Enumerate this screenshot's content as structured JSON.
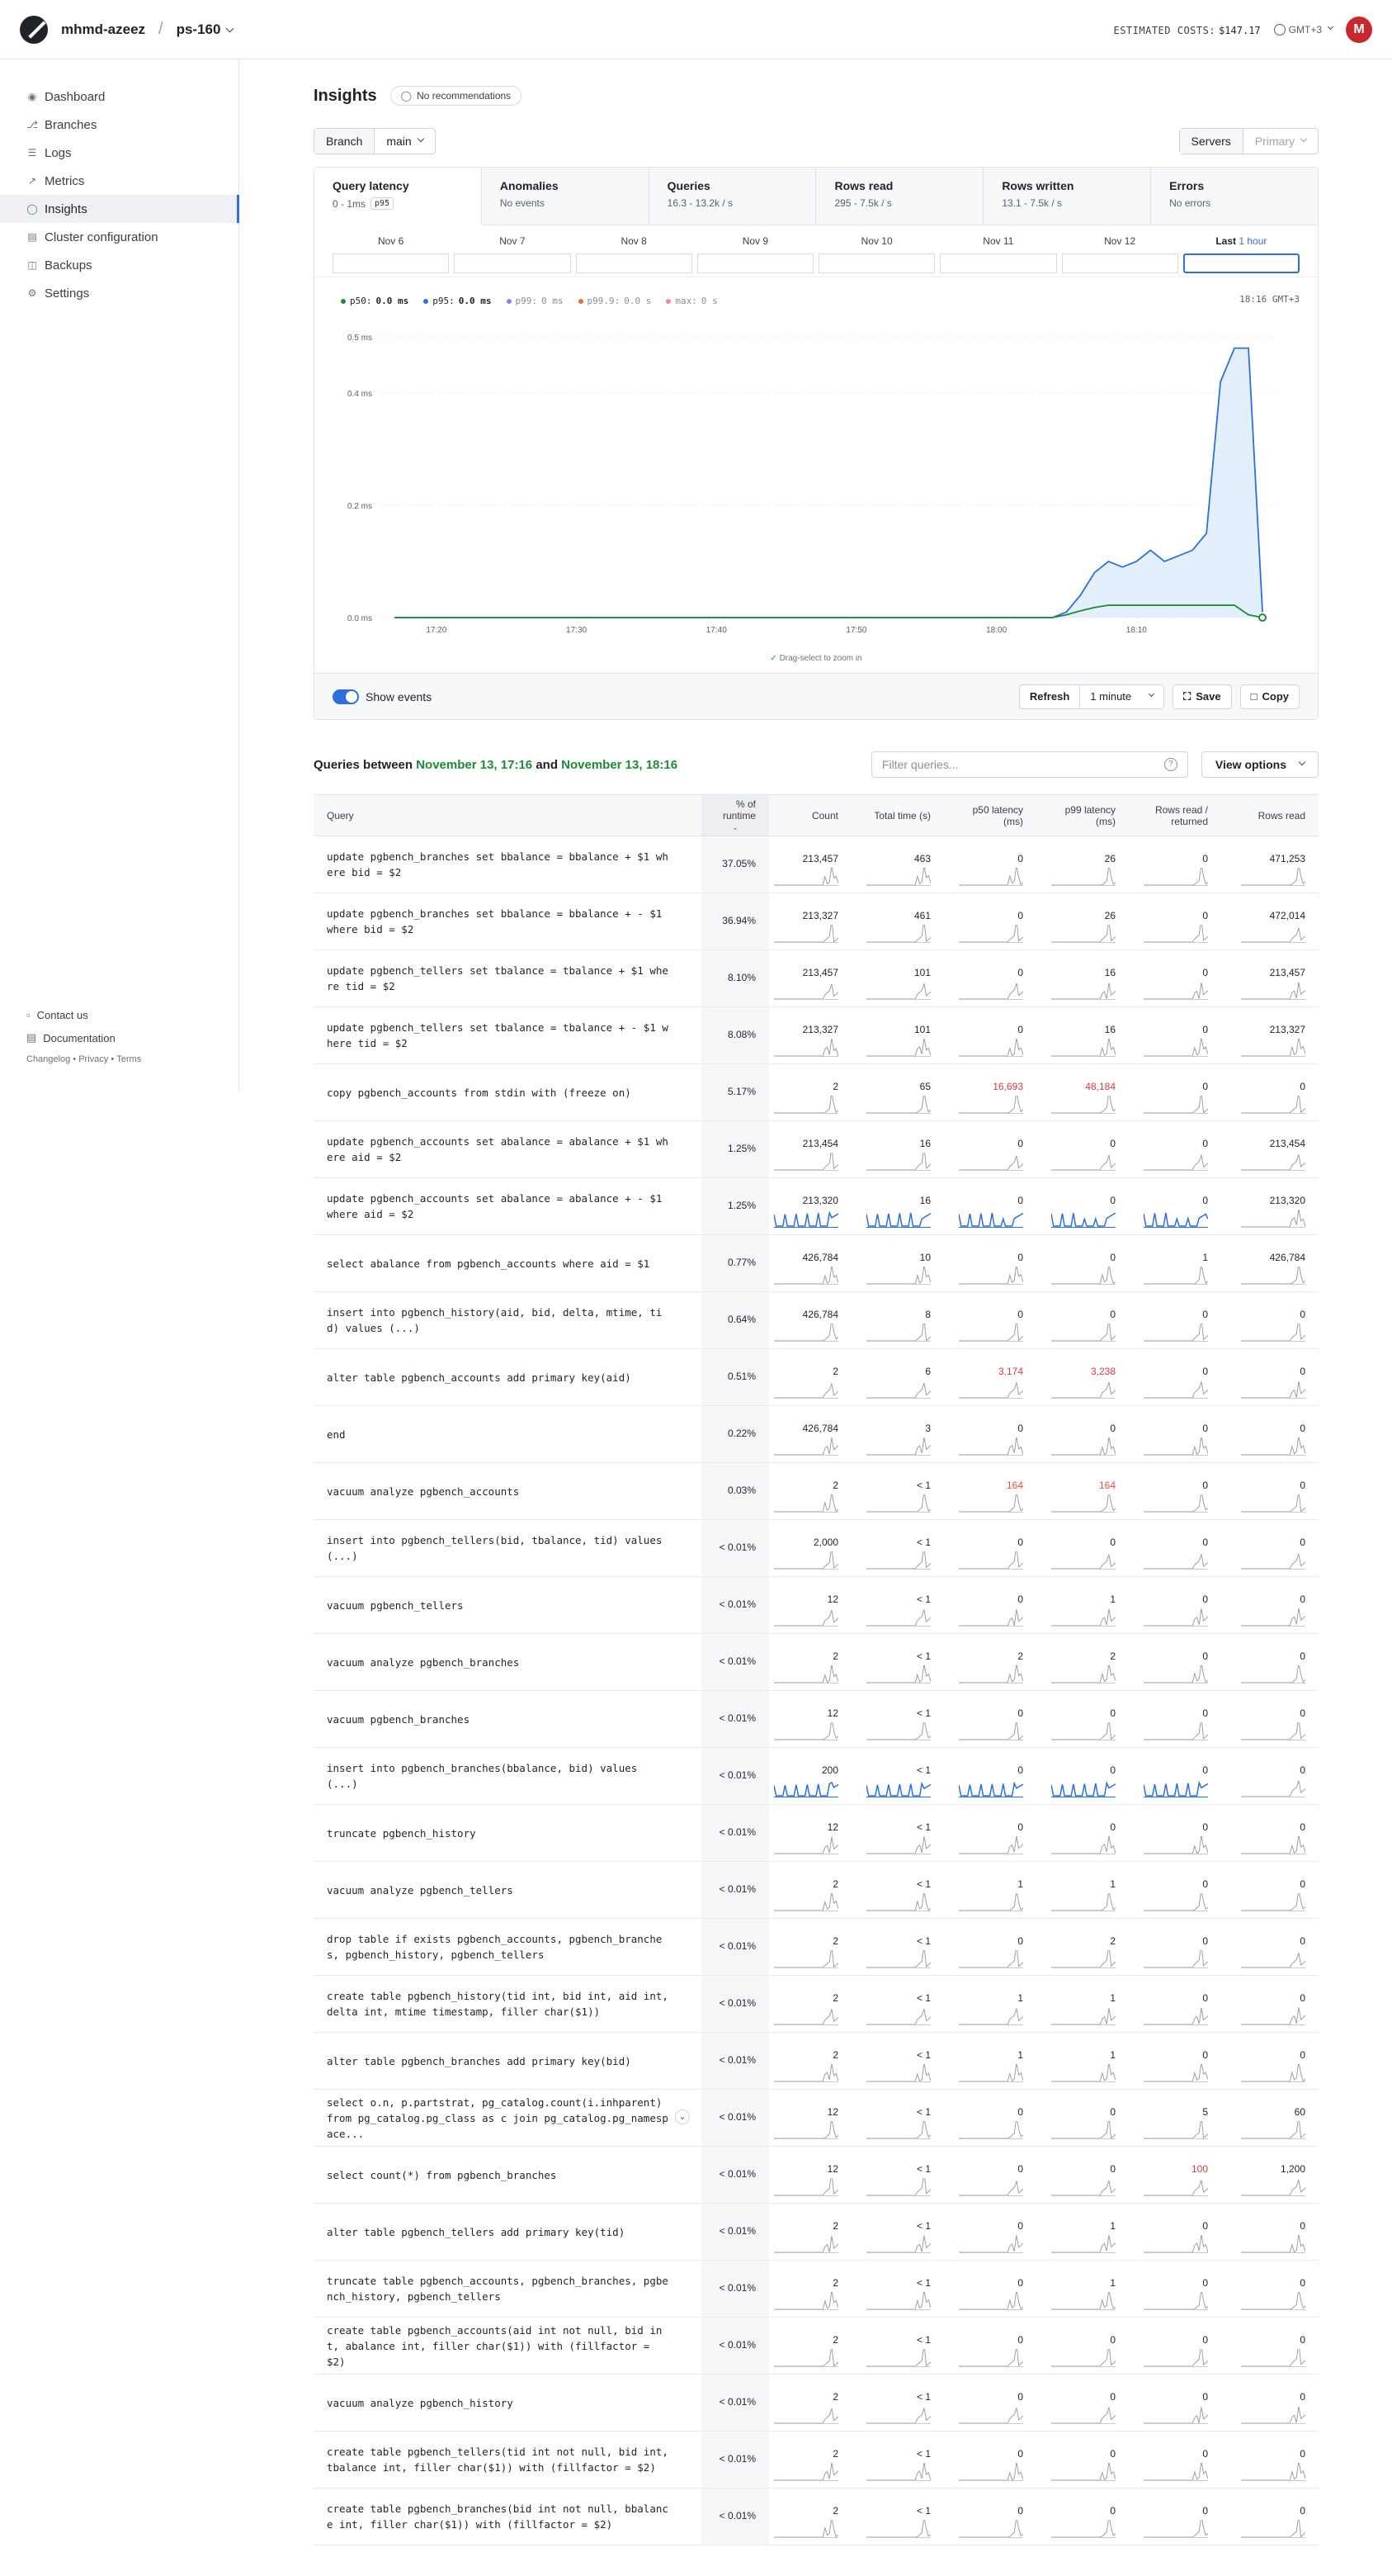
{
  "header": {
    "org": "mhmd-azeez",
    "sep": "/",
    "database": "ps-160",
    "costs_label": "ESTIMATED COSTS:",
    "costs_value": "$147.17",
    "timezone": "GMT+3",
    "avatar_letter": "M"
  },
  "sidebar": {
    "items": [
      {
        "label": "Dashboard",
        "icon": "grid-icon"
      },
      {
        "label": "Branches",
        "icon": "branch-icon"
      },
      {
        "label": "Logs",
        "icon": "logs-icon"
      },
      {
        "label": "Metrics",
        "icon": "metrics-icon"
      },
      {
        "label": "Insights",
        "icon": "bulb-icon",
        "active": true
      },
      {
        "label": "Cluster configuration",
        "icon": "cluster-icon"
      },
      {
        "label": "Backups",
        "icon": "backup-icon"
      },
      {
        "label": "Settings",
        "icon": "gear-icon"
      }
    ],
    "footer": {
      "contact": "Contact us",
      "docs": "Documentation",
      "changelog": "Changelog",
      "privacy": "Privacy",
      "terms": "Terms",
      "dot": "•"
    }
  },
  "insights": {
    "title": "Insights",
    "recommendations": "No recommendations",
    "branch_label": "Branch",
    "branch_value": "main",
    "servers_label": "Servers",
    "servers_value": "Primary",
    "tabs": [
      {
        "title": "Query latency",
        "sub": "0 - 1ms",
        "badge": "p95"
      },
      {
        "title": "Anomalies",
        "sub": "No events"
      },
      {
        "title": "Queries",
        "sub": "16.3 - 13.2k / s"
      },
      {
        "title": "Rows read",
        "sub": "295 - 7.5k / s"
      },
      {
        "title": "Rows written",
        "sub": "13.1 - 7.5k / s"
      },
      {
        "title": "Errors",
        "sub": "No errors"
      }
    ],
    "days": [
      "Nov 6",
      "Nov 7",
      "Nov 8",
      "Nov 9",
      "Nov 10",
      "Nov 11",
      "Nov 12"
    ],
    "selected_day": {
      "prefix": "Last",
      "value": "1 hour"
    },
    "legend": [
      {
        "name": "p50:",
        "value": "0.0 ms",
        "color": "#1f8a3a",
        "on": true
      },
      {
        "name": "p95:",
        "value": "0.0 ms",
        "color": "#2f6fdb",
        "on": true
      },
      {
        "name": "p99:",
        "value": "0 ms",
        "color": "#9b7ee0",
        "on": false
      },
      {
        "name": "p99.9:",
        "value": "0.0 s",
        "color": "#e0733c",
        "on": false
      },
      {
        "name": "max:",
        "value": "0 s",
        "color": "#e88aa8",
        "on": false
      }
    ],
    "chart_time": "18:16 GMT+3",
    "zoom_hint": "Drag-select to zoom in",
    "show_events": "Show events",
    "refresh": "Refresh",
    "interval": "1 minute",
    "save": "Save",
    "copy": "Copy"
  },
  "chart_data": {
    "type": "line",
    "x_ticks": [
      "17:20",
      "17:30",
      "17:40",
      "17:50",
      "18:00",
      "18:10"
    ],
    "y_ticks": [
      "0.0 ms",
      "0.2 ms",
      "0.4 ms",
      "0.5 ms"
    ],
    "ylim": [
      0,
      0.5
    ],
    "x_minutes": [
      17.0,
      19,
      20,
      21,
      22,
      23,
      24,
      25,
      26,
      27,
      28,
      29,
      30,
      31,
      32,
      33,
      34,
      35,
      36,
      37,
      38,
      39,
      40,
      41,
      42,
      43,
      44,
      45,
      46,
      47,
      48,
      49,
      50,
      51,
      52,
      53,
      54,
      55,
      56,
      57,
      58,
      59,
      60,
      61,
      62,
      63,
      64,
      65,
      66,
      67,
      68,
      69,
      70,
      71,
      72,
      73,
      74,
      75,
      76,
      77,
      78,
      79
    ],
    "series": [
      {
        "name": "p50",
        "color": "#1f8a3a",
        "values": [
          0,
          0,
          0,
          0,
          0,
          0,
          0,
          0,
          0,
          0,
          0,
          0,
          0,
          0,
          0,
          0,
          0,
          0,
          0,
          0,
          0,
          0,
          0,
          0,
          0,
          0,
          0,
          0,
          0,
          0,
          0,
          0,
          0,
          0,
          0,
          0,
          0,
          0,
          0,
          0,
          0,
          0,
          0,
          0,
          0,
          0,
          0,
          0.005,
          0.012,
          0.018,
          0.022,
          0.022,
          0.022,
          0.022,
          0.022,
          0.022,
          0.022,
          0.022,
          0.022,
          0.022,
          0.005,
          0
        ]
      },
      {
        "name": "p95",
        "color": "#2f6fdb",
        "values": [
          0,
          0,
          0,
          0,
          0,
          0,
          0,
          0,
          0,
          0,
          0,
          0,
          0,
          0,
          0,
          0,
          0,
          0,
          0,
          0,
          0,
          0,
          0,
          0,
          0,
          0,
          0,
          0,
          0,
          0,
          0,
          0,
          0,
          0,
          0,
          0,
          0,
          0,
          0,
          0,
          0,
          0,
          0,
          0,
          0,
          0,
          0,
          0.01,
          0.04,
          0.08,
          0.1,
          0.09,
          0.1,
          0.12,
          0.1,
          0.11,
          0.12,
          0.15,
          0.42,
          0.48,
          0.48,
          0.01
        ]
      }
    ],
    "window_start": "17:16",
    "window_end": "18:16"
  },
  "queries": {
    "title_prefix": "Queries between",
    "from": "November 13, 17:16",
    "and": "and",
    "to": "November 13, 18:16",
    "filter_placeholder": "Filter queries...",
    "view_options": "View options",
    "columns": [
      "Query",
      "% of runtime",
      "Count",
      "Total time (s)",
      "p50 latency (ms)",
      "p99 latency (ms)",
      "Rows read / returned",
      "Rows read"
    ],
    "rows": [
      {
        "q": "update pgbench_branches set bbalance = bbalance + $1 where bid = $2",
        "pct": "37.05%",
        "count": "213,457",
        "total": "463",
        "p50": "0",
        "p99": "26",
        "rr": "0",
        "rows": "471,253"
      },
      {
        "q": "update pgbench_branches set bbalance = bbalance + - $1 where bid = $2",
        "pct": "36.94%",
        "count": "213,327",
        "total": "461",
        "p50": "0",
        "p99": "26",
        "rr": "0",
        "rows": "472,014"
      },
      {
        "q": "update pgbench_tellers set tbalance = tbalance + $1 where tid = $2",
        "pct": "8.10%",
        "count": "213,457",
        "total": "101",
        "p50": "0",
        "p99": "16",
        "rr": "0",
        "rows": "213,457"
      },
      {
        "q": "update pgbench_tellers set tbalance = tbalance + - $1 where tid = $2",
        "pct": "8.08%",
        "count": "213,327",
        "total": "101",
        "p50": "0",
        "p99": "16",
        "rr": "0",
        "rows": "213,327"
      },
      {
        "q": "copy pgbench_accounts from stdin with (freeze on)",
        "pct": "5.17%",
        "count": "2",
        "total": "65",
        "p50": "16,693",
        "p99": "48,184",
        "rr": "0",
        "rows": "0",
        "hot": true
      },
      {
        "q": "update pgbench_accounts set abalance = abalance + $1 where aid = $2",
        "pct": "1.25%",
        "count": "213,454",
        "total": "16",
        "p50": "0",
        "p99": "0",
        "rr": "0",
        "rows": "213,454"
      },
      {
        "q": "update pgbench_accounts set abalance = abalance + - $1 where aid = $2",
        "pct": "1.25%",
        "count": "213,320",
        "total": "16",
        "p50": "0",
        "p99": "0",
        "rr": "0",
        "rows": "213,320",
        "blue": true
      },
      {
        "q": "select abalance from pgbench_accounts where aid = $1",
        "pct": "0.77%",
        "count": "426,784",
        "total": "10",
        "p50": "0",
        "p99": "0",
        "rr": "1",
        "rows": "426,784"
      },
      {
        "q": "insert into pgbench_history(aid, bid, delta, mtime, tid) values (...)",
        "pct": "0.64%",
        "count": "426,784",
        "total": "8",
        "p50": "0",
        "p99": "0",
        "rr": "0",
        "rows": "0"
      },
      {
        "q": "alter table pgbench_accounts add primary key(aid)",
        "pct": "0.51%",
        "count": "2",
        "total": "6",
        "p50": "3,174",
        "p99": "3,238",
        "rr": "0",
        "rows": "0",
        "hot": true
      },
      {
        "q": "end",
        "pct": "0.22%",
        "count": "426,784",
        "total": "3",
        "p50": "0",
        "p99": "0",
        "rr": "0",
        "rows": "0"
      },
      {
        "q": "vacuum analyze pgbench_accounts",
        "pct": "0.03%",
        "count": "2",
        "total": "< 1",
        "p50": "164",
        "p99": "164",
        "rr": "0",
        "rows": "0",
        "warm": true
      },
      {
        "q": "insert into pgbench_tellers(bid, tbalance, tid) values (...)",
        "pct": "< 0.01%",
        "count": "2,000",
        "total": "< 1",
        "p50": "0",
        "p99": "0",
        "rr": "0",
        "rows": "0"
      },
      {
        "q": "vacuum pgbench_tellers",
        "pct": "< 0.01%",
        "count": "12",
        "total": "< 1",
        "p50": "0",
        "p99": "1",
        "rr": "0",
        "rows": "0"
      },
      {
        "q": "vacuum analyze pgbench_branches",
        "pct": "< 0.01%",
        "count": "2",
        "total": "< 1",
        "p50": "2",
        "p99": "2",
        "rr": "0",
        "rows": "0"
      },
      {
        "q": "vacuum pgbench_branches",
        "pct": "< 0.01%",
        "count": "12",
        "total": "< 1",
        "p50": "0",
        "p99": "0",
        "rr": "0",
        "rows": "0"
      },
      {
        "q": "insert into pgbench_branches(bbalance, bid) values (...)",
        "pct": "< 0.01%",
        "count": "200",
        "total": "< 1",
        "p50": "0",
        "p99": "0",
        "rr": "0",
        "rows": "0",
        "blue": true
      },
      {
        "q": "truncate pgbench_history",
        "pct": "< 0.01%",
        "count": "12",
        "total": "< 1",
        "p50": "0",
        "p99": "0",
        "rr": "0",
        "rows": "0"
      },
      {
        "q": "vacuum analyze pgbench_tellers",
        "pct": "< 0.01%",
        "count": "2",
        "total": "< 1",
        "p50": "1",
        "p99": "1",
        "rr": "0",
        "rows": "0"
      },
      {
        "q": "drop table if exists pgbench_accounts, pgbench_branches, pgbench_history, pgbench_tellers",
        "pct": "< 0.01%",
        "count": "2",
        "total": "< 1",
        "p50": "0",
        "p99": "2",
        "rr": "0",
        "rows": "0"
      },
      {
        "q": "create table pgbench_history(tid int, bid int, aid int, delta int, mtime timestamp, filler char($1))",
        "pct": "< 0.01%",
        "count": "2",
        "total": "< 1",
        "p50": "1",
        "p99": "1",
        "rr": "0",
        "rows": "0"
      },
      {
        "q": "alter table pgbench_branches add primary key(bid)",
        "pct": "< 0.01%",
        "count": "2",
        "total": "< 1",
        "p50": "1",
        "p99": "1",
        "rr": "0",
        "rows": "0"
      },
      {
        "q": "select o.n, p.partstrat, pg_catalog.count(i.inhparent) from pg_catalog.pg_class as c join pg_catalog.pg_namespace...",
        "pct": "< 0.01%",
        "count": "12",
        "total": "< 1",
        "p50": "0",
        "p99": "0",
        "rr": "5",
        "rows": "60",
        "expand": true
      },
      {
        "q": "select count(*) from pgbench_branches",
        "pct": "< 0.01%",
        "count": "12",
        "total": "< 1",
        "p50": "0",
        "p99": "0",
        "rr": "100",
        "rows": "1,200",
        "rrhot": true
      },
      {
        "q": "alter table pgbench_tellers add primary key(tid)",
        "pct": "< 0.01%",
        "count": "2",
        "total": "< 1",
        "p50": "0",
        "p99": "1",
        "rr": "0",
        "rows": "0"
      },
      {
        "q": "truncate table pgbench_accounts, pgbench_branches, pgbench_history, pgbench_tellers",
        "pct": "< 0.01%",
        "count": "2",
        "total": "< 1",
        "p50": "0",
        "p99": "1",
        "rr": "0",
        "rows": "0"
      },
      {
        "q": "create table pgbench_accounts(aid int not null, bid int, abalance int, filler char($1)) with (fillfactor = $2)",
        "pct": "< 0.01%",
        "count": "2",
        "total": "< 1",
        "p50": "0",
        "p99": "0",
        "rr": "0",
        "rows": "0"
      },
      {
        "q": "vacuum analyze pgbench_history",
        "pct": "< 0.01%",
        "count": "2",
        "total": "< 1",
        "p50": "0",
        "p99": "0",
        "rr": "0",
        "rows": "0"
      },
      {
        "q": "create table pgbench_tellers(tid int not null, bid int, tbalance int, filler char($1)) with (fillfactor = $2)",
        "pct": "< 0.01%",
        "count": "2",
        "total": "< 1",
        "p50": "0",
        "p99": "0",
        "rr": "0",
        "rows": "0"
      },
      {
        "q": "create table pgbench_branches(bid int not null, bbalance int, filler char($1)) with (fillfactor = $2)",
        "pct": "< 0.01%",
        "count": "2",
        "total": "< 1",
        "p50": "0",
        "p99": "0",
        "rr": "0",
        "rows": "0"
      }
    ]
  }
}
